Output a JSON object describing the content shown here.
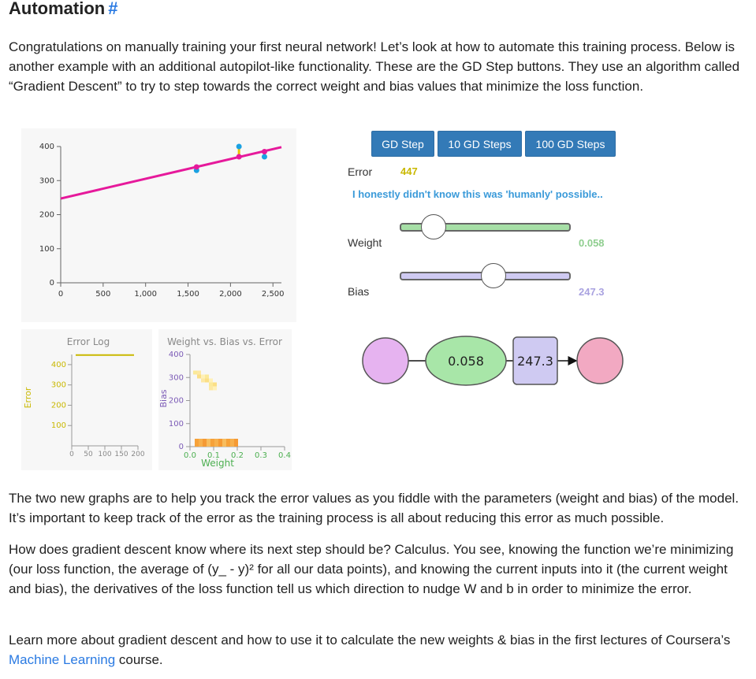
{
  "heading": {
    "title": "Automation",
    "anchor": "#"
  },
  "intro": "Congratulations on manually training your first neural network! Let’s look at how to automate this training process. Below is another example with an additional autopilot-like functionality. These are the GD Step buttons. They use an algorithm called “Gradient Descent” to try to step towards the correct weight and bias values that minimize the loss function.",
  "buttons": {
    "step1": "GD Step",
    "step10": "10 GD Steps",
    "step100": "100 GD Steps"
  },
  "controls": {
    "error_label": "Error",
    "error_value": "447",
    "message": "I honestly didn't know this was 'humanly' possible..",
    "weight_label": "Weight",
    "weight_value": "0.058",
    "weight_fraction": 0.2,
    "bias_label": "Bias",
    "bias_value": "247.3",
    "bias_fraction": 0.55
  },
  "network": {
    "weight": "0.058",
    "bias": "247.3"
  },
  "colors": {
    "accent": "#2a7ae2",
    "button": "#337ab7",
    "line": "#e6199b",
    "points": "#1ba1e2",
    "error": "#c9b800",
    "weight": "#8fce8f",
    "bias": "#a9a2e0"
  },
  "chart_data": [
    {
      "type": "scatter",
      "title": "",
      "x_ticks": [
        "0",
        "500",
        "1,000",
        "1,500",
        "2,000",
        "2,500"
      ],
      "y_ticks": [
        "0",
        "100",
        "200",
        "300",
        "400"
      ],
      "xlim": [
        0,
        2600
      ],
      "ylim": [
        0,
        400
      ],
      "points": [
        {
          "x": 1600,
          "y": 330,
          "pred": 340
        },
        {
          "x": 2100,
          "y": 400,
          "pred": 370
        },
        {
          "x": 2400,
          "y": 370,
          "pred": 385
        }
      ],
      "line": {
        "weight": 0.058,
        "bias": 247.3
      }
    },
    {
      "type": "line",
      "title": "Error Log",
      "ylabel": "Error",
      "x_ticks": [
        "0",
        "50",
        "100",
        "150",
        "200"
      ],
      "y_ticks": [
        "100",
        "200",
        "300",
        "400"
      ],
      "xlim": [
        0,
        200
      ],
      "ylim": [
        0,
        450
      ],
      "values": [
        447,
        447,
        447
      ]
    },
    {
      "type": "heatmap",
      "title": "Weight vs. Bias vs. Error",
      "xlabel": "Weight",
      "ylabel": "Bias",
      "x_ticks": [
        "0.0",
        "0.1",
        "0.2",
        "0.3",
        "0.4"
      ],
      "y_ticks": [
        "0",
        "100",
        "200",
        "300",
        "400"
      ],
      "xlim": [
        0,
        0.4
      ],
      "ylim": [
        0,
        400
      ]
    }
  ],
  "para2": "The two new graphs are to help you track the error values as you fiddle with the parameters (weight and bias) of the model. It’s important to keep track of the error as the training process is all about reducing this error as much possible.",
  "para3": "How does gradient descent know where its next step should be? Calculus. You see, knowing the function we’re minimizing (our loss function, the average of (y_ - y)² for all our data points), and knowing the current inputs into it (the current weight and bias), the derivatives of the loss function tell us which direction to nudge W and b in order to minimize the error.",
  "para4": {
    "before": "Learn more about gradient descent and how to use it to calculate the new weights & bias in the first lectures of Coursera’s ",
    "link": "Machine Learning",
    "after": " course."
  }
}
